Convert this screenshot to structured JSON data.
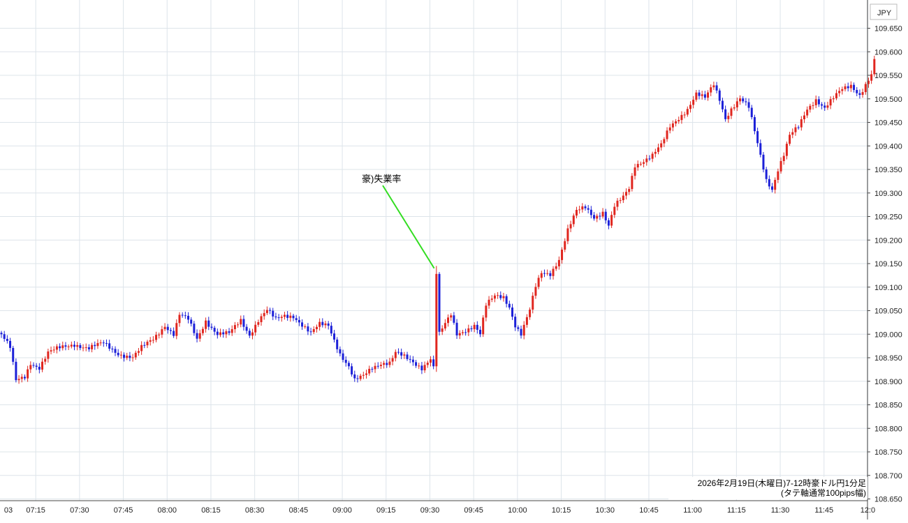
{
  "chart_data": {
    "type": "candlestick",
    "currency_label": "JPY",
    "y_ticks": [
      "109.650",
      "109.600",
      "109.550",
      "109.500",
      "109.450",
      "109.400",
      "109.350",
      "109.300",
      "109.250",
      "109.200",
      "109.150",
      "109.100",
      "109.050",
      "109.000",
      "108.950",
      "108.900",
      "108.850",
      "108.800",
      "108.750",
      "108.700",
      "108.650"
    ],
    "x_ticks": [
      "03",
      "07:15",
      "07:30",
      "07:45",
      "08:00",
      "08:15",
      "08:30",
      "08:45",
      "09:00",
      "09:15",
      "09:30",
      "09:45",
      "10:00",
      "10:15",
      "10:30",
      "10:45",
      "11:00",
      "11:15",
      "11:30",
      "11:45",
      "12:0"
    ],
    "ylim": [
      108.64,
      109.7
    ],
    "grid": true,
    "up_color": "#e0261f",
    "down_color": "#1c20d8",
    "annotation": {
      "text": "豪)失業率",
      "time": "09:30",
      "line_color": "#33dd22"
    },
    "footer_line1": "2026年2月19日(木曜日)7-12時豪ドル円1分足",
    "footer_line2": "(タテ軸通常100pips幅)",
    "path_points": [
      [
        0,
        109.0
      ],
      [
        3,
        108.97
      ],
      [
        5,
        108.9
      ],
      [
        8,
        108.91
      ],
      [
        10,
        108.94
      ],
      [
        13,
        108.93
      ],
      [
        16,
        108.96
      ],
      [
        20,
        108.97
      ],
      [
        25,
        108.98
      ],
      [
        30,
        108.97
      ],
      [
        35,
        108.98
      ],
      [
        40,
        108.96
      ],
      [
        45,
        108.95
      ],
      [
        48,
        108.97
      ],
      [
        52,
        108.99
      ],
      [
        56,
        109.02
      ],
      [
        59,
        109.0
      ],
      [
        61,
        109.04
      ],
      [
        64,
        109.03
      ],
      [
        67,
        108.99
      ],
      [
        70,
        109.03
      ],
      [
        74,
        109.0
      ],
      [
        78,
        109.0
      ],
      [
        82,
        109.03
      ],
      [
        85,
        109.0
      ],
      [
        88,
        109.03
      ],
      [
        91,
        109.05
      ],
      [
        94,
        109.03
      ],
      [
        97,
        109.04
      ],
      [
        100,
        109.04
      ],
      [
        103,
        109.02
      ],
      [
        106,
        109.0
      ],
      [
        109,
        109.02
      ],
      [
        112,
        109.02
      ],
      [
        114,
        108.99
      ],
      [
        116,
        108.96
      ],
      [
        119,
        108.93
      ],
      [
        121,
        108.9
      ],
      [
        124,
        108.91
      ],
      [
        127,
        108.93
      ],
      [
        130,
        108.94
      ],
      [
        133,
        108.94
      ],
      [
        135,
        108.96
      ],
      [
        138,
        108.95
      ],
      [
        141,
        108.94
      ],
      [
        144,
        108.93
      ],
      [
        147,
        108.95
      ],
      [
        148,
        108.93
      ],
      [
        149,
        109.13
      ],
      [
        150,
        109.0
      ],
      [
        152,
        109.02
      ],
      [
        154,
        109.04
      ],
      [
        156,
        109.0
      ],
      [
        159,
        109.01
      ],
      [
        162,
        109.02
      ],
      [
        164,
        109.0
      ],
      [
        166,
        109.06
      ],
      [
        169,
        109.08
      ],
      [
        172,
        109.08
      ],
      [
        174,
        109.06
      ],
      [
        176,
        109.02
      ],
      [
        178,
        109.0
      ],
      [
        181,
        109.05
      ],
      [
        183,
        109.1
      ],
      [
        185,
        109.13
      ],
      [
        188,
        109.13
      ],
      [
        191,
        109.16
      ],
      [
        194,
        109.22
      ],
      [
        197,
        109.26
      ],
      [
        200,
        109.27
      ],
      [
        203,
        109.25
      ],
      [
        206,
        109.26
      ],
      [
        208,
        109.23
      ],
      [
        210,
        109.27
      ],
      [
        213,
        109.29
      ],
      [
        215,
        109.31
      ],
      [
        217,
        109.36
      ],
      [
        220,
        109.37
      ],
      [
        223,
        109.38
      ],
      [
        226,
        109.4
      ],
      [
        229,
        109.44
      ],
      [
        232,
        109.46
      ],
      [
        235,
        109.48
      ],
      [
        238,
        109.51
      ],
      [
        241,
        109.5
      ],
      [
        244,
        109.53
      ],
      [
        246,
        109.5
      ],
      [
        248,
        109.46
      ],
      [
        250,
        109.48
      ],
      [
        253,
        109.5
      ],
      [
        256,
        109.48
      ],
      [
        258,
        109.43
      ],
      [
        260,
        109.38
      ],
      [
        262,
        109.33
      ],
      [
        264,
        109.31
      ],
      [
        266,
        109.35
      ],
      [
        268,
        109.38
      ],
      [
        270,
        109.42
      ],
      [
        273,
        109.44
      ],
      [
        276,
        109.48
      ],
      [
        279,
        109.5
      ],
      [
        282,
        109.48
      ],
      [
        285,
        109.5
      ],
      [
        288,
        109.52
      ],
      [
        291,
        109.53
      ],
      [
        294,
        109.51
      ],
      [
        296,
        109.53
      ],
      [
        298,
        109.55
      ],
      [
        299,
        109.58
      ]
    ]
  }
}
